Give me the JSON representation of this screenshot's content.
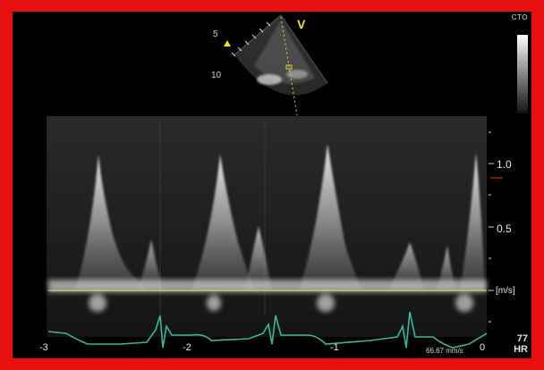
{
  "frame": {
    "border_color": "#e8110f"
  },
  "ultrasound": {
    "depth_labels": [
      "5",
      "10"
    ],
    "view_marker": "V",
    "orientation_icon": "triangle-marker-icon"
  },
  "scale": {
    "label": "CTO",
    "grayscale_bar": "grayscale-bar"
  },
  "doppler": {
    "velocity_ticks": [
      "1.0",
      "0.5"
    ],
    "unit": "[m/s]",
    "time_ticks": [
      "-3",
      "-2",
      "-1",
      "0"
    ],
    "sweep_speed": "66.67 mm/s",
    "heart_rate": "77",
    "heart_rate_label": "HR",
    "baseline_color": "#e8e86a",
    "ecg_color": "#38b89a"
  }
}
